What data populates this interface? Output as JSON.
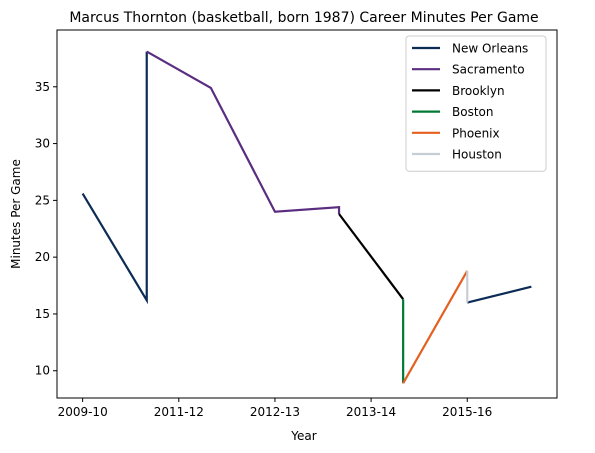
{
  "chart_data": {
    "type": "line",
    "title": "Marcus Thornton (basketball, born 1987) Career Minutes Per Game",
    "xlabel": "Year",
    "ylabel": "Minutes Per Game",
    "x_ticks": [
      {
        "x": 0.0,
        "label": "2009-10"
      },
      {
        "x": 1.5,
        "label": "2011-12"
      },
      {
        "x": 3.0,
        "label": "2012-13"
      },
      {
        "x": 4.5,
        "label": "2013-14"
      },
      {
        "x": 6.0,
        "label": "2015-16"
      }
    ],
    "y_ticks": [
      10,
      15,
      20,
      25,
      30,
      35
    ],
    "xlim": [
      -0.4,
      7.4
    ],
    "ylim": [
      7.6,
      40.0
    ],
    "grid": false,
    "legend_position": "top-right",
    "series": [
      {
        "name": "New Orleans",
        "color": "#0c2c56",
        "segments": [
          [
            {
              "x": 0.0,
              "y": 25.6
            },
            {
              "x": 1.0,
              "y": 16.2
            },
            {
              "x": 1.0,
              "y": 38.1
            }
          ],
          [
            {
              "x": 6.0,
              "y": 16.0
            },
            {
              "x": 7.0,
              "y": 17.4
            }
          ]
        ]
      },
      {
        "name": "Sacramento",
        "color": "#5a2d81",
        "segments": [
          [
            {
              "x": 1.0,
              "y": 38.1
            },
            {
              "x": 2.0,
              "y": 34.9
            },
            {
              "x": 3.0,
              "y": 24.0
            },
            {
              "x": 4.0,
              "y": 24.4
            },
            {
              "x": 4.0,
              "y": 23.8
            }
          ]
        ]
      },
      {
        "name": "Brooklyn",
        "color": "#000000",
        "segments": [
          [
            {
              "x": 4.0,
              "y": 23.8
            },
            {
              "x": 5.0,
              "y": 16.3
            }
          ]
        ]
      },
      {
        "name": "Boston",
        "color": "#007a33",
        "segments": [
          [
            {
              "x": 5.0,
              "y": 16.3
            },
            {
              "x": 5.0,
              "y": 8.9
            }
          ]
        ]
      },
      {
        "name": "Phoenix",
        "color": "#e56020",
        "segments": [
          [
            {
              "x": 5.0,
              "y": 8.9
            },
            {
              "x": 6.0,
              "y": 18.8
            }
          ]
        ]
      },
      {
        "name": "Houston",
        "color": "#c4ced4",
        "segments": [
          [
            {
              "x": 6.0,
              "y": 18.8
            },
            {
              "x": 6.0,
              "y": 16.0
            }
          ]
        ]
      }
    ]
  }
}
